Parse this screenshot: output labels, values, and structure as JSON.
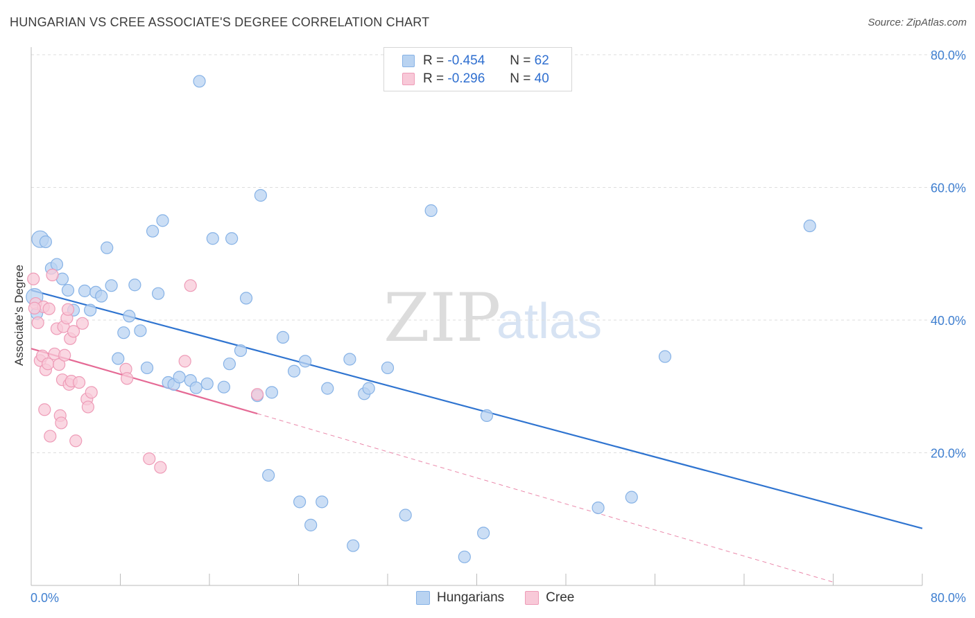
{
  "title": "HUNGARIAN VS CREE ASSOCIATE'S DEGREE CORRELATION CHART",
  "source": "Source: ZipAtlas.com",
  "watermark": {
    "zip": "ZIP",
    "atlas": "atlas"
  },
  "legend": {
    "rows": [
      {
        "r_label": "R =",
        "r_value": "-0.454",
        "n_label": "N =",
        "n_value": "62"
      },
      {
        "r_label": "R =",
        "r_value": "-0.296",
        "n_label": "N =",
        "n_value": "40"
      }
    ]
  },
  "bottom_legend": {
    "hungarians": "Hungarians",
    "cree": "Cree"
  },
  "colors": {
    "hungarians_fill": "#b9d3f1",
    "hungarians_stroke": "#86b2e6",
    "hungarians_line": "#2f74d0",
    "cree_fill": "#f8c9d8",
    "cree_stroke": "#ee9bb7",
    "cree_line": "#e56a95",
    "tick_label": "#3f7fd0",
    "grid": "#dddddd"
  },
  "chart_data": {
    "type": "scatter",
    "title": "HUNGARIAN VS CREE ASSOCIATE'S DEGREE CORRELATION CHART",
    "xlabel": "",
    "ylabel": "Associate's Degree",
    "xlim": [
      0,
      80
    ],
    "ylim": [
      0,
      80
    ],
    "x_tick_labels": [
      "0.0%",
      "80.0%"
    ],
    "y_ticks": [
      20,
      40,
      60,
      80
    ],
    "y_tick_labels": [
      "20.0%",
      "40.0%",
      "60.0%",
      "80.0%"
    ],
    "grid": true,
    "series": [
      {
        "name": "Hungarians",
        "r": -0.454,
        "n": 62,
        "trend": {
          "x": [
            0,
            80
          ],
          "y": [
            44.5,
            8.6
          ],
          "dashed_extension": false
        },
        "points": [
          [
            0.3,
            43.5
          ],
          [
            0.8,
            52.2
          ],
          [
            1.3,
            51.8
          ],
          [
            1.8,
            47.8
          ],
          [
            2.3,
            48.4
          ],
          [
            2.8,
            46.2
          ],
          [
            3.3,
            44.5
          ],
          [
            3.8,
            41.5
          ],
          [
            4.8,
            44.4
          ],
          [
            5.8,
            44.2
          ],
          [
            5.3,
            41.5
          ],
          [
            6.3,
            43.6
          ],
          [
            6.8,
            50.9
          ],
          [
            7.2,
            45.2
          ],
          [
            7.8,
            34.2
          ],
          [
            8.3,
            38.1
          ],
          [
            8.8,
            40.6
          ],
          [
            9.3,
            45.3
          ],
          [
            9.8,
            38.4
          ],
          [
            10.4,
            32.8
          ],
          [
            10.9,
            53.4
          ],
          [
            11.4,
            44.0
          ],
          [
            11.8,
            55.0
          ],
          [
            12.3,
            30.6
          ],
          [
            12.8,
            30.3
          ],
          [
            13.3,
            31.4
          ],
          [
            14.3,
            30.9
          ],
          [
            14.8,
            29.8
          ],
          [
            15.1,
            76.0
          ],
          [
            15.8,
            30.4
          ],
          [
            16.3,
            52.3
          ],
          [
            17.3,
            29.9
          ],
          [
            18.0,
            52.3
          ],
          [
            17.8,
            33.4
          ],
          [
            18.8,
            35.4
          ],
          [
            19.3,
            43.3
          ],
          [
            20.3,
            28.6
          ],
          [
            20.6,
            58.8
          ],
          [
            21.3,
            16.6
          ],
          [
            21.6,
            29.1
          ],
          [
            22.6,
            37.4
          ],
          [
            23.6,
            32.3
          ],
          [
            24.1,
            12.6
          ],
          [
            24.6,
            33.8
          ],
          [
            25.1,
            9.1
          ],
          [
            26.1,
            12.6
          ],
          [
            26.6,
            29.7
          ],
          [
            28.6,
            34.1
          ],
          [
            28.9,
            6.0
          ],
          [
            29.9,
            28.9
          ],
          [
            30.3,
            29.7
          ],
          [
            32.0,
            32.8
          ],
          [
            33.6,
            10.6
          ],
          [
            35.9,
            56.5
          ],
          [
            38.9,
            4.3
          ],
          [
            40.6,
            7.9
          ],
          [
            40.9,
            25.6
          ],
          [
            50.9,
            11.7
          ],
          [
            53.9,
            13.3
          ],
          [
            56.9,
            34.5
          ],
          [
            69.9,
            54.2
          ],
          [
            0.5,
            41.0
          ]
        ]
      },
      {
        "name": "Cree",
        "r": -0.296,
        "n": 40,
        "trend": {
          "x": [
            0,
            20.3
          ],
          "y": [
            35.7,
            25.9
          ],
          "dashed_to": [
            72.0,
            0.5
          ]
        },
        "points": [
          [
            0.2,
            46.2
          ],
          [
            0.4,
            42.5
          ],
          [
            0.6,
            39.6
          ],
          [
            0.8,
            33.9
          ],
          [
            1.0,
            34.6
          ],
          [
            1.1,
            42.0
          ],
          [
            1.2,
            26.5
          ],
          [
            1.3,
            32.5
          ],
          [
            1.5,
            33.4
          ],
          [
            1.7,
            22.5
          ],
          [
            1.6,
            41.7
          ],
          [
            1.9,
            46.8
          ],
          [
            2.1,
            34.9
          ],
          [
            2.3,
            38.7
          ],
          [
            2.5,
            33.3
          ],
          [
            2.6,
            25.6
          ],
          [
            2.7,
            24.5
          ],
          [
            2.8,
            31.0
          ],
          [
            2.9,
            39.0
          ],
          [
            3.0,
            34.7
          ],
          [
            3.2,
            40.3
          ],
          [
            3.3,
            41.6
          ],
          [
            3.4,
            30.3
          ],
          [
            3.5,
            37.2
          ],
          [
            3.6,
            30.8
          ],
          [
            3.8,
            38.3
          ],
          [
            4.0,
            21.8
          ],
          [
            4.3,
            30.6
          ],
          [
            4.6,
            39.5
          ],
          [
            5.0,
            28.1
          ],
          [
            5.1,
            26.9
          ],
          [
            5.4,
            29.1
          ],
          [
            8.5,
            32.6
          ],
          [
            8.6,
            31.2
          ],
          [
            10.6,
            19.1
          ],
          [
            11.6,
            17.8
          ],
          [
            13.8,
            33.8
          ],
          [
            14.3,
            45.2
          ],
          [
            20.3,
            28.8
          ],
          [
            0.3,
            41.8
          ]
        ]
      }
    ]
  }
}
